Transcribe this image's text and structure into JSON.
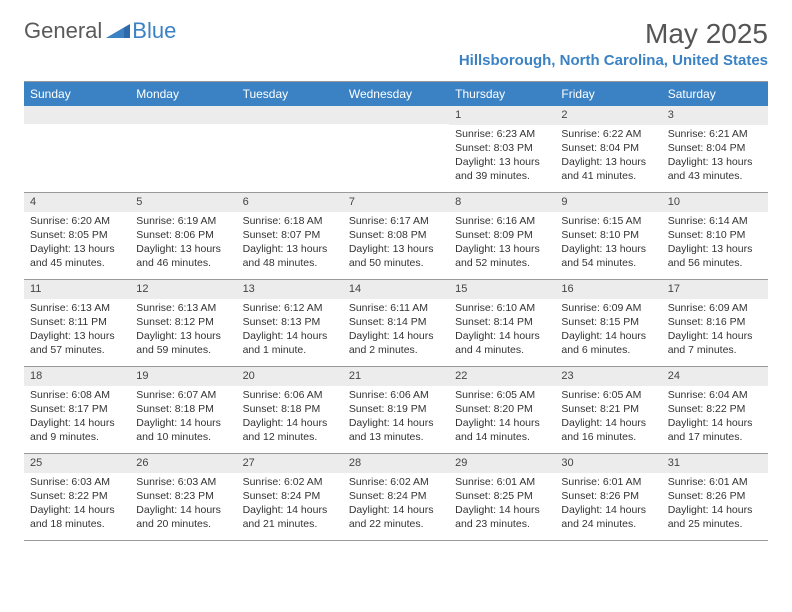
{
  "brand": {
    "part1": "General",
    "part2": "Blue"
  },
  "title": "May 2025",
  "location": "Hillsborough, North Carolina, United States",
  "colors": {
    "header_bg": "#3b82c4",
    "daynum_bg": "#ececec",
    "border": "#999999",
    "text": "#333333",
    "title_text": "#555555"
  },
  "weekdays": [
    "Sunday",
    "Monday",
    "Tuesday",
    "Wednesday",
    "Thursday",
    "Friday",
    "Saturday"
  ],
  "weeks": [
    [
      {
        "n": "",
        "sr": "",
        "ss": "",
        "dl": ""
      },
      {
        "n": "",
        "sr": "",
        "ss": "",
        "dl": ""
      },
      {
        "n": "",
        "sr": "",
        "ss": "",
        "dl": ""
      },
      {
        "n": "",
        "sr": "",
        "ss": "",
        "dl": ""
      },
      {
        "n": "1",
        "sr": "Sunrise: 6:23 AM",
        "ss": "Sunset: 8:03 PM",
        "dl": "Daylight: 13 hours and 39 minutes."
      },
      {
        "n": "2",
        "sr": "Sunrise: 6:22 AM",
        "ss": "Sunset: 8:04 PM",
        "dl": "Daylight: 13 hours and 41 minutes."
      },
      {
        "n": "3",
        "sr": "Sunrise: 6:21 AM",
        "ss": "Sunset: 8:04 PM",
        "dl": "Daylight: 13 hours and 43 minutes."
      }
    ],
    [
      {
        "n": "4",
        "sr": "Sunrise: 6:20 AM",
        "ss": "Sunset: 8:05 PM",
        "dl": "Daylight: 13 hours and 45 minutes."
      },
      {
        "n": "5",
        "sr": "Sunrise: 6:19 AM",
        "ss": "Sunset: 8:06 PM",
        "dl": "Daylight: 13 hours and 46 minutes."
      },
      {
        "n": "6",
        "sr": "Sunrise: 6:18 AM",
        "ss": "Sunset: 8:07 PM",
        "dl": "Daylight: 13 hours and 48 minutes."
      },
      {
        "n": "7",
        "sr": "Sunrise: 6:17 AM",
        "ss": "Sunset: 8:08 PM",
        "dl": "Daylight: 13 hours and 50 minutes."
      },
      {
        "n": "8",
        "sr": "Sunrise: 6:16 AM",
        "ss": "Sunset: 8:09 PM",
        "dl": "Daylight: 13 hours and 52 minutes."
      },
      {
        "n": "9",
        "sr": "Sunrise: 6:15 AM",
        "ss": "Sunset: 8:10 PM",
        "dl": "Daylight: 13 hours and 54 minutes."
      },
      {
        "n": "10",
        "sr": "Sunrise: 6:14 AM",
        "ss": "Sunset: 8:10 PM",
        "dl": "Daylight: 13 hours and 56 minutes."
      }
    ],
    [
      {
        "n": "11",
        "sr": "Sunrise: 6:13 AM",
        "ss": "Sunset: 8:11 PM",
        "dl": "Daylight: 13 hours and 57 minutes."
      },
      {
        "n": "12",
        "sr": "Sunrise: 6:13 AM",
        "ss": "Sunset: 8:12 PM",
        "dl": "Daylight: 13 hours and 59 minutes."
      },
      {
        "n": "13",
        "sr": "Sunrise: 6:12 AM",
        "ss": "Sunset: 8:13 PM",
        "dl": "Daylight: 14 hours and 1 minute."
      },
      {
        "n": "14",
        "sr": "Sunrise: 6:11 AM",
        "ss": "Sunset: 8:14 PM",
        "dl": "Daylight: 14 hours and 2 minutes."
      },
      {
        "n": "15",
        "sr": "Sunrise: 6:10 AM",
        "ss": "Sunset: 8:14 PM",
        "dl": "Daylight: 14 hours and 4 minutes."
      },
      {
        "n": "16",
        "sr": "Sunrise: 6:09 AM",
        "ss": "Sunset: 8:15 PM",
        "dl": "Daylight: 14 hours and 6 minutes."
      },
      {
        "n": "17",
        "sr": "Sunrise: 6:09 AM",
        "ss": "Sunset: 8:16 PM",
        "dl": "Daylight: 14 hours and 7 minutes."
      }
    ],
    [
      {
        "n": "18",
        "sr": "Sunrise: 6:08 AM",
        "ss": "Sunset: 8:17 PM",
        "dl": "Daylight: 14 hours and 9 minutes."
      },
      {
        "n": "19",
        "sr": "Sunrise: 6:07 AM",
        "ss": "Sunset: 8:18 PM",
        "dl": "Daylight: 14 hours and 10 minutes."
      },
      {
        "n": "20",
        "sr": "Sunrise: 6:06 AM",
        "ss": "Sunset: 8:18 PM",
        "dl": "Daylight: 14 hours and 12 minutes."
      },
      {
        "n": "21",
        "sr": "Sunrise: 6:06 AM",
        "ss": "Sunset: 8:19 PM",
        "dl": "Daylight: 14 hours and 13 minutes."
      },
      {
        "n": "22",
        "sr": "Sunrise: 6:05 AM",
        "ss": "Sunset: 8:20 PM",
        "dl": "Daylight: 14 hours and 14 minutes."
      },
      {
        "n": "23",
        "sr": "Sunrise: 6:05 AM",
        "ss": "Sunset: 8:21 PM",
        "dl": "Daylight: 14 hours and 16 minutes."
      },
      {
        "n": "24",
        "sr": "Sunrise: 6:04 AM",
        "ss": "Sunset: 8:22 PM",
        "dl": "Daylight: 14 hours and 17 minutes."
      }
    ],
    [
      {
        "n": "25",
        "sr": "Sunrise: 6:03 AM",
        "ss": "Sunset: 8:22 PM",
        "dl": "Daylight: 14 hours and 18 minutes."
      },
      {
        "n": "26",
        "sr": "Sunrise: 6:03 AM",
        "ss": "Sunset: 8:23 PM",
        "dl": "Daylight: 14 hours and 20 minutes."
      },
      {
        "n": "27",
        "sr": "Sunrise: 6:02 AM",
        "ss": "Sunset: 8:24 PM",
        "dl": "Daylight: 14 hours and 21 minutes."
      },
      {
        "n": "28",
        "sr": "Sunrise: 6:02 AM",
        "ss": "Sunset: 8:24 PM",
        "dl": "Daylight: 14 hours and 22 minutes."
      },
      {
        "n": "29",
        "sr": "Sunrise: 6:01 AM",
        "ss": "Sunset: 8:25 PM",
        "dl": "Daylight: 14 hours and 23 minutes."
      },
      {
        "n": "30",
        "sr": "Sunrise: 6:01 AM",
        "ss": "Sunset: 8:26 PM",
        "dl": "Daylight: 14 hours and 24 minutes."
      },
      {
        "n": "31",
        "sr": "Sunrise: 6:01 AM",
        "ss": "Sunset: 8:26 PM",
        "dl": "Daylight: 14 hours and 25 minutes."
      }
    ]
  ]
}
